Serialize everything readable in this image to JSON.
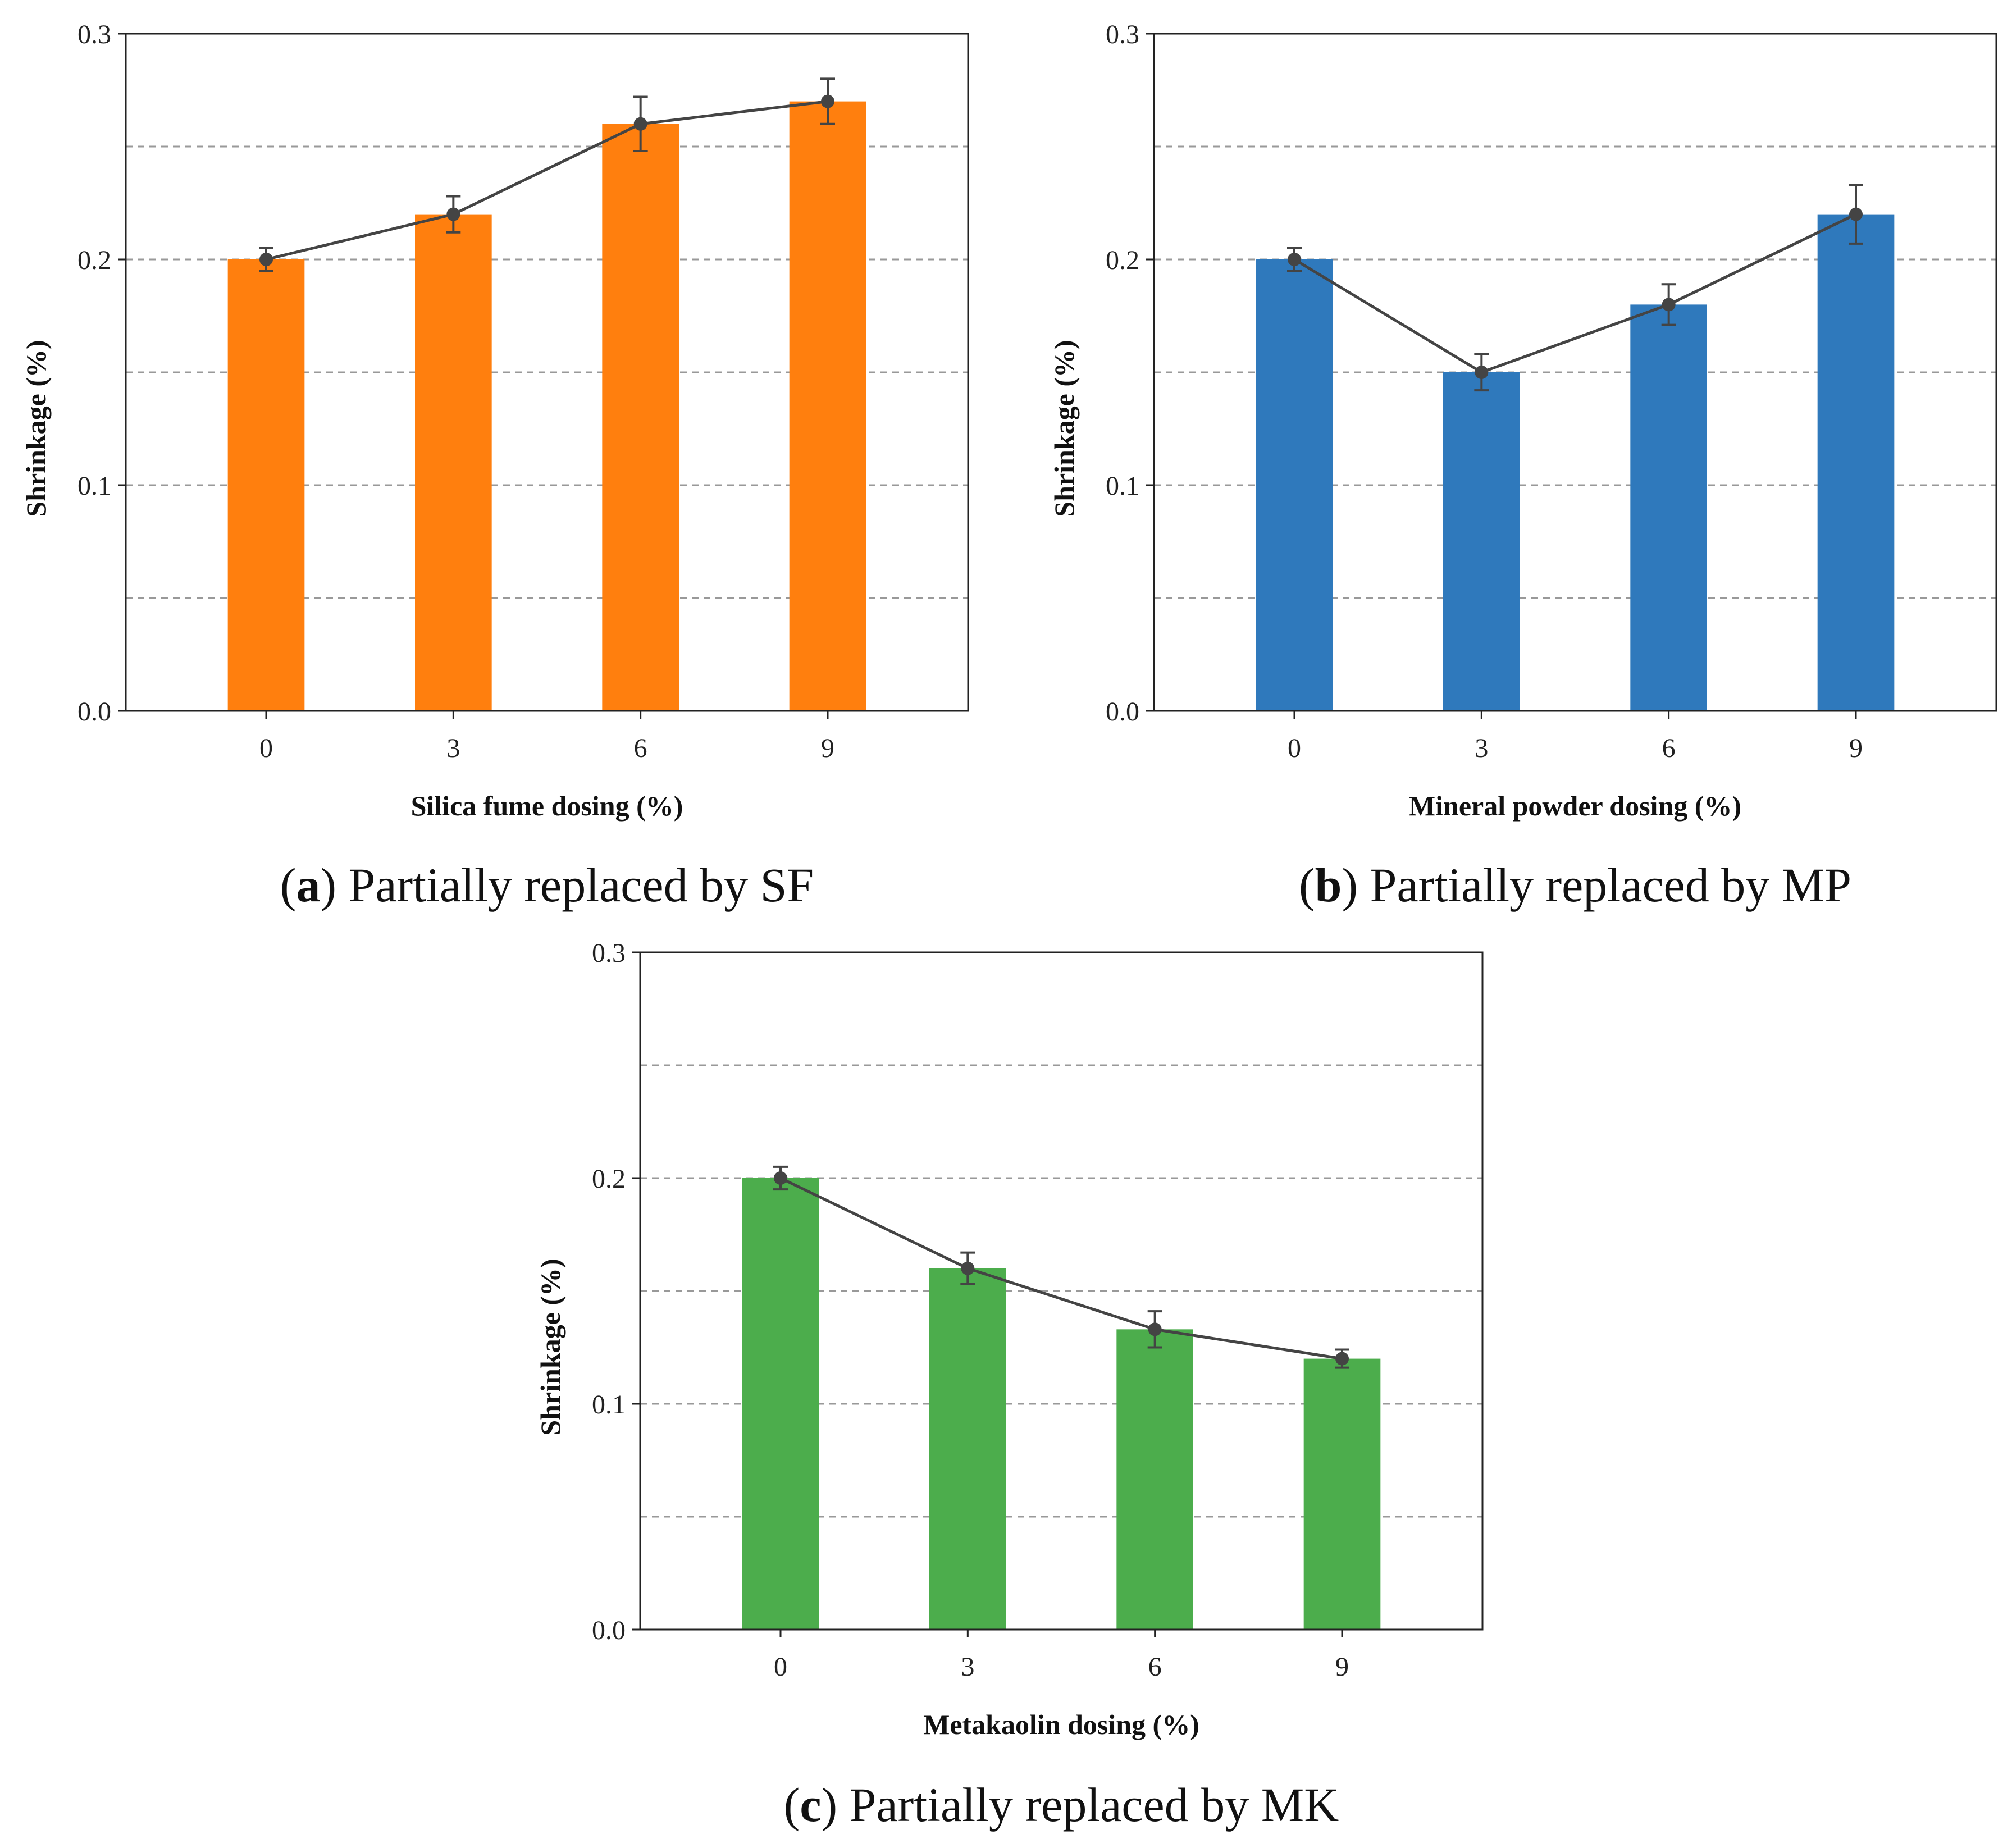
{
  "chart_data": [
    {
      "id": "a",
      "type": "bar",
      "categories": [
        "0",
        "3",
        "6",
        "9"
      ],
      "values": [
        0.2,
        0.22,
        0.26,
        0.27
      ],
      "errors": [
        0.005,
        0.008,
        0.012,
        0.01
      ],
      "color": "#ff7f0e",
      "xlabel": "Silica fume dosing (%)",
      "ylabel": "Shrinkage (%)",
      "ylim": [
        0.0,
        0.3
      ],
      "yticks": [
        "0.0",
        "0.1",
        "0.2",
        "0.3"
      ],
      "grid": "dashed horizontal every 0.05",
      "caption_letter": "a",
      "caption_text": "Partially replaced by SF"
    },
    {
      "id": "b",
      "type": "bar",
      "categories": [
        "0",
        "3",
        "6",
        "9"
      ],
      "values": [
        0.2,
        0.15,
        0.18,
        0.22
      ],
      "errors": [
        0.005,
        0.008,
        0.009,
        0.013
      ],
      "color": "#2f79bc",
      "xlabel": "Mineral powder dosing (%)",
      "ylabel": "Shrinkage (%)",
      "ylim": [
        0.0,
        0.3
      ],
      "yticks": [
        "0.0",
        "0.1",
        "0.2",
        "0.3"
      ],
      "grid": "dashed horizontal every 0.05",
      "caption_letter": "b",
      "caption_text": "Partially replaced by MP"
    },
    {
      "id": "c",
      "type": "bar",
      "categories": [
        "0",
        "3",
        "6",
        "9"
      ],
      "values": [
        0.2,
        0.16,
        0.133,
        0.12
      ],
      "errors": [
        0.005,
        0.007,
        0.008,
        0.004
      ],
      "color": "#4cad4c",
      "xlabel": "Metakaolin dosing (%)",
      "ylabel": "Shrinkage (%)",
      "ylim": [
        0.0,
        0.3
      ],
      "yticks": [
        "0.0",
        "0.1",
        "0.2",
        "0.3"
      ],
      "grid": "dashed horizontal every 0.05",
      "caption_letter": "c",
      "caption_text": "Partially replaced by MK"
    }
  ]
}
